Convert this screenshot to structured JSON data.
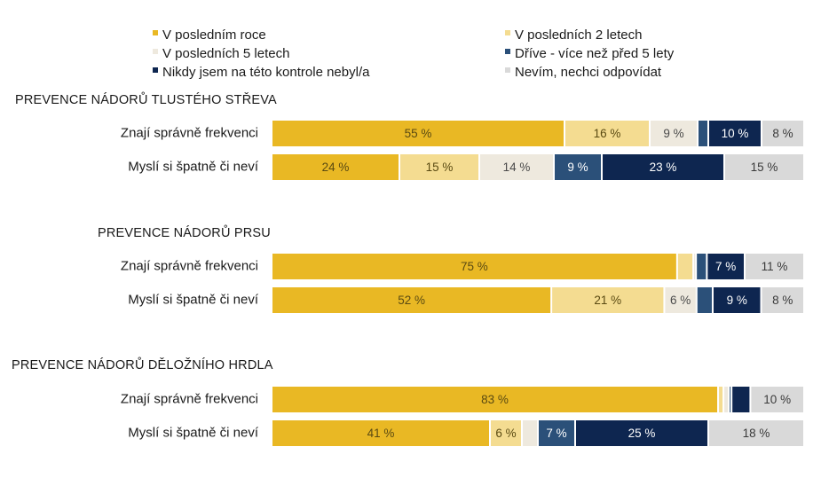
{
  "chart_data": {
    "type": "bar",
    "orientation": "horizontal",
    "stacked": true,
    "xlim": [
      0,
      100
    ],
    "unit": "%",
    "legend_placement": "top",
    "colors": [
      "#E9B824",
      "#F4DC91",
      "#EEE9DE",
      "#2B5079",
      "#0E2650",
      "#D9D9D9"
    ],
    "label_colors": [
      "#5a4a12",
      "#5a4a12",
      "#4a4a4a",
      "#ffffff",
      "#ffffff",
      "#3a3a3a"
    ],
    "series": [
      {
        "name": "V posledním roce"
      },
      {
        "name": "V posledních 2 letech"
      },
      {
        "name": "V posledních 5 letech"
      },
      {
        "name": "Dříve - více než před 5 lety"
      },
      {
        "name": "Nikdy jsem na této kontrole nebyl/a"
      },
      {
        "name": "Nevím, nechci odpovídat"
      }
    ],
    "groups": [
      {
        "title": "PREVENCE NÁDORŮ TLUSTÉHO STŘEVA",
        "rows": [
          {
            "label": "Znají správně frekvenci",
            "values": [
              55,
              16,
              9,
              2,
              10,
              8
            ],
            "labels": [
              "55 %",
              "16 %",
              "9 %",
              "",
              "10 %",
              "8 %"
            ]
          },
          {
            "label": "Myslí si špatně či neví",
            "values": [
              24,
              15,
              14,
              9,
              23,
              15
            ],
            "labels": [
              "24 %",
              "15 %",
              "14 %",
              "9 %",
              "23 %",
              "15 %"
            ]
          }
        ]
      },
      {
        "title": "PREVENCE NÁDORŮ PRSU",
        "rows": [
          {
            "label": "Znají správně frekvenci",
            "values": [
              75,
              3,
              0.5,
              2,
              7,
              11
            ],
            "labels": [
              "75 %",
              "",
              "",
              "",
              "7 %",
              "11 %"
            ]
          },
          {
            "label": "Myslí si špatně či neví",
            "values": [
              52,
              21,
              6,
              3,
              9,
              8
            ],
            "labels": [
              "52 %",
              "21 %",
              "6 %",
              "",
              "9 %",
              "8 %"
            ]
          }
        ]
      },
      {
        "title": "PREVENCE NÁDORŮ DĚLOŽNÍHO HRDLA",
        "rows": [
          {
            "label": "Znají správně frekvenci",
            "values": [
              83,
              1,
              1,
              0.5,
              3.5,
              10
            ],
            "labels": [
              "83 %",
              "",
              "",
              "",
              "",
              "10 %"
            ]
          },
          {
            "label": "Myslí si špatně či neví",
            "values": [
              41,
              6,
              3,
              7,
              25,
              18
            ],
            "labels": [
              "41 %",
              "6 %",
              "",
              "7 %",
              "25 %",
              "18 %"
            ]
          }
        ]
      }
    ]
  }
}
